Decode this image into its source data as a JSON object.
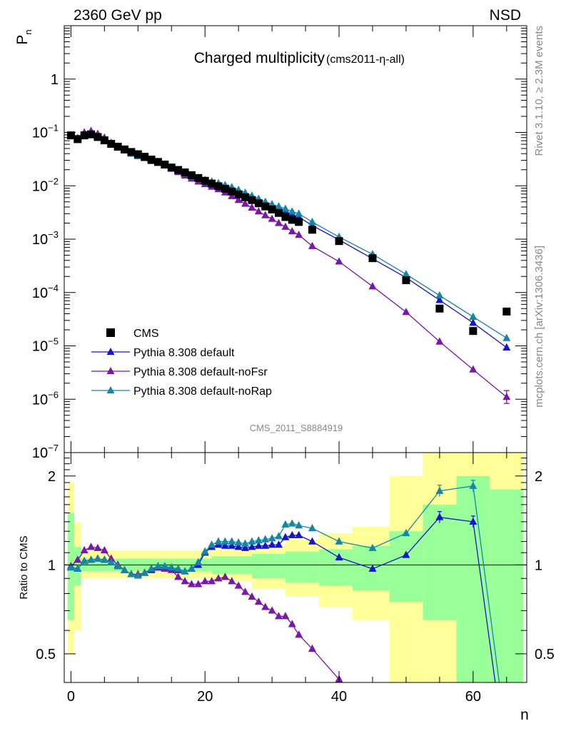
{
  "header": {
    "left": "2360 GeV pp",
    "right": "NSD"
  },
  "side_labels": {
    "rivet": "Rivet 3.1.10, ≥ 2.3M events",
    "mcplots": "mcplots.cern.ch [arXiv:1306.3436]"
  },
  "chart_data": [
    {
      "type": "scatter",
      "panel": "main",
      "title": "Charged multiplicity",
      "subtitle": "(cms2011-η-all)",
      "watermark": "CMS_2011_S8884919",
      "ylabel": "P",
      "ylabel_sub": "n",
      "xlabel": "n",
      "yscale": "log",
      "ylim": [
        1e-07,
        10
      ],
      "xlim": [
        -1,
        68
      ],
      "y_ticks": [
        {
          "value": 1e-07,
          "base": "10",
          "exp": "−7"
        },
        {
          "value": 1e-06,
          "base": "10",
          "exp": "−6"
        },
        {
          "value": 1e-05,
          "base": "10",
          "exp": "−5"
        },
        {
          "value": 0.0001,
          "base": "10",
          "exp": "−4"
        },
        {
          "value": 0.001,
          "base": "10",
          "exp": "−3"
        },
        {
          "value": 0.01,
          "base": "10",
          "exp": "−2"
        },
        {
          "value": 0.1,
          "base": "10",
          "exp": "−1"
        },
        {
          "value": 1,
          "base": "1",
          "exp": ""
        }
      ],
      "legend": {
        "placement": "bottom-left",
        "entries": [
          {
            "label": "CMS",
            "color": "#000000",
            "marker": "square"
          },
          {
            "label": "Pythia 8.308 default",
            "color": "#1515cc",
            "marker": "triangle"
          },
          {
            "label": "Pythia 8.308 default-noFsr",
            "color": "#7a16a8",
            "marker": "triangle"
          },
          {
            "label": "Pythia 8.308 default-noRap",
            "color": "#1486a6",
            "marker": "triangle"
          }
        ]
      },
      "series": [
        {
          "name": "CMS",
          "color": "#000000",
          "x": [
            0,
            1,
            2,
            3,
            4,
            5,
            6,
            7,
            8,
            9,
            10,
            11,
            12,
            13,
            14,
            15,
            16,
            17,
            18,
            19,
            20,
            21,
            22,
            23,
            24,
            25,
            26,
            27,
            28,
            29,
            30,
            31,
            32,
            33,
            34,
            36,
            40,
            45,
            50,
            55,
            60,
            65
          ],
          "y": [
            0.088,
            0.075,
            0.088,
            0.092,
            0.082,
            0.071,
            0.061,
            0.054,
            0.048,
            0.043,
            0.039,
            0.035,
            0.031,
            0.028,
            0.025,
            0.022,
            0.0198,
            0.0178,
            0.0158,
            0.014,
            0.0124,
            0.011,
            0.0098,
            0.0088,
            0.0078,
            0.0069,
            0.0061,
            0.0054,
            0.0047,
            0.0041,
            0.0036,
            0.0031,
            0.0026,
            0.0023,
            0.0021,
            0.0015,
            0.00092,
            0.00044,
            0.00017,
            5e-05,
            1.9e-05,
            4.4e-05
          ]
        },
        {
          "name": "Pythia 8.308 default",
          "color": "#1515cc",
          "x": [
            0,
            1,
            2,
            3,
            4,
            5,
            6,
            7,
            8,
            9,
            10,
            11,
            12,
            13,
            14,
            15,
            16,
            17,
            18,
            19,
            20,
            21,
            22,
            23,
            24,
            25,
            26,
            27,
            28,
            29,
            30,
            31,
            32,
            33,
            34,
            36,
            40,
            45,
            50,
            55,
            60,
            65
          ],
          "y": [
            0.086,
            0.072,
            0.09,
            0.095,
            0.085,
            0.073,
            0.062,
            0.054,
            0.046,
            0.04,
            0.036,
            0.033,
            0.029,
            0.027,
            0.024,
            0.021,
            0.0188,
            0.0167,
            0.015,
            0.0136,
            0.0124,
            0.0115,
            0.0107,
            0.0098,
            0.0089,
            0.0079,
            0.0069,
            0.0061,
            0.0053,
            0.0046,
            0.0041,
            0.0036,
            0.0033,
            0.0029,
            0.0026,
            0.0018,
            0.00097,
            0.00043,
            0.00019,
            7.2e-05,
            2.7e-05,
            9.3e-06
          ]
        },
        {
          "name": "Pythia 8.308 default-noFsr",
          "color": "#7a16a8",
          "x": [
            0,
            1,
            2,
            3,
            4,
            5,
            6,
            7,
            8,
            9,
            10,
            11,
            12,
            13,
            14,
            15,
            16,
            17,
            18,
            19,
            20,
            21,
            22,
            23,
            24,
            25,
            26,
            27,
            28,
            29,
            30,
            31,
            32,
            33,
            34,
            36,
            40,
            45,
            50,
            55,
            60,
            65
          ],
          "y": [
            0.087,
            0.078,
            0.1,
            0.106,
            0.094,
            0.08,
            0.064,
            0.054,
            0.046,
            0.04,
            0.036,
            0.033,
            0.03,
            0.027,
            0.024,
            0.0208,
            0.018,
            0.0155,
            0.0136,
            0.012,
            0.0107,
            0.0096,
            0.0086,
            0.0075,
            0.0064,
            0.0054,
            0.0046,
            0.0039,
            0.0033,
            0.0028,
            0.0024,
            0.002,
            0.0017,
            0.0014,
            0.0012,
            0.00074,
            0.00038,
            0.00013,
            4.3e-05,
            1.2e-05,
            3.6e-06,
            1.1e-06
          ]
        },
        {
          "name": "Pythia 8.308 default-noRap",
          "color": "#1486a6",
          "x": [
            0,
            1,
            2,
            3,
            4,
            5,
            6,
            7,
            8,
            9,
            10,
            11,
            12,
            13,
            14,
            15,
            16,
            17,
            18,
            19,
            20,
            21,
            22,
            23,
            24,
            25,
            26,
            27,
            28,
            29,
            30,
            31,
            32,
            33,
            34,
            36,
            40,
            45,
            50,
            55,
            60,
            65
          ],
          "y": [
            0.086,
            0.072,
            0.09,
            0.094,
            0.085,
            0.073,
            0.062,
            0.054,
            0.046,
            0.04,
            0.036,
            0.033,
            0.03,
            0.027,
            0.024,
            0.0215,
            0.019,
            0.0168,
            0.015,
            0.0138,
            0.0128,
            0.012,
            0.0112,
            0.0103,
            0.0094,
            0.0084,
            0.0074,
            0.0065,
            0.0057,
            0.005,
            0.0045,
            0.0041,
            0.0037,
            0.0033,
            0.003,
            0.0021,
            0.0011,
            0.00052,
            0.00022,
            8.8e-05,
            3.5e-05,
            1.4e-05
          ]
        }
      ]
    },
    {
      "type": "line",
      "panel": "ratio",
      "ylabel": "Ratio to CMS",
      "yscale": "log",
      "ylim": [
        0.4,
        2.4
      ],
      "xlim": [
        -1,
        68
      ],
      "x_tick_labels": [
        "0",
        "20",
        "40",
        "60"
      ],
      "y_tick_labels": [
        "0.5",
        "1",
        "2"
      ],
      "band_inner_color": "#99ff99",
      "band_outer_color": "#ffff99",
      "bands": [
        {
          "x0": -0.5,
          "x1": 0.5,
          "inner": [
            0.65,
            1.5
          ],
          "outer": [
            0.5,
            1.9
          ]
        },
        {
          "x0": 0.5,
          "x1": 1.5,
          "inner": [
            0.85,
            1.15
          ],
          "outer": [
            0.6,
            1.4
          ]
        },
        {
          "x0": 1.5,
          "x1": 21,
          "inner": [
            0.95,
            1.05
          ],
          "outer": [
            0.9,
            1.12
          ]
        },
        {
          "x0": 21,
          "x1": 27,
          "inner": [
            0.93,
            1.07
          ],
          "outer": [
            0.88,
            1.13
          ]
        },
        {
          "x0": 27,
          "x1": 32,
          "inner": [
            0.9,
            1.09
          ],
          "outer": [
            0.83,
            1.17
          ]
        },
        {
          "x0": 32,
          "x1": 37,
          "inner": [
            0.87,
            1.11
          ],
          "outer": [
            0.78,
            1.22
          ]
        },
        {
          "x0": 37,
          "x1": 42,
          "inner": [
            0.85,
            1.13
          ],
          "outer": [
            0.72,
            1.28
          ]
        },
        {
          "x0": 42,
          "x1": 47.5,
          "inner": [
            0.82,
            1.16
          ],
          "outer": [
            0.65,
            1.35
          ]
        },
        {
          "x0": 47.5,
          "x1": 52.5,
          "inner": [
            0.75,
            1.3
          ],
          "outer": [
            0.4,
            2.0
          ]
        },
        {
          "x0": 52.5,
          "x1": 57.5,
          "inner": [
            0.65,
            1.6
          ],
          "outer": [
            0.4,
            2.4
          ]
        },
        {
          "x0": 57.5,
          "x1": 62.5,
          "inner": [
            0.4,
            2.0
          ],
          "outer": [
            0.4,
            2.4
          ]
        },
        {
          "x0": 62.5,
          "x1": 67.5,
          "inner": [
            0.4,
            1.8
          ],
          "outer": [
            0.4,
            2.4
          ]
        }
      ],
      "series": [
        {
          "name": "Pythia 8.308 default",
          "color": "#1515cc",
          "x": [
            0,
            1,
            2,
            3,
            4,
            5,
            6,
            7,
            8,
            9,
            10,
            11,
            12,
            13,
            14,
            15,
            16,
            17,
            18,
            19,
            20,
            21,
            22,
            23,
            24,
            25,
            26,
            27,
            28,
            29,
            30,
            31,
            32,
            33,
            34,
            36,
            40,
            45,
            50,
            55,
            60,
            65
          ],
          "y": [
            0.98,
            0.97,
            1.03,
            1.04,
            1.05,
            1.04,
            1.02,
            0.99,
            0.96,
            0.93,
            0.92,
            0.94,
            0.96,
            0.98,
            0.98,
            0.97,
            0.96,
            0.95,
            0.97,
            1.0,
            1.1,
            1.15,
            1.17,
            1.16,
            1.16,
            1.15,
            1.14,
            1.15,
            1.16,
            1.16,
            1.17,
            1.17,
            1.24,
            1.26,
            1.26,
            1.2,
            1.06,
            0.97,
            1.08,
            1.45,
            1.4,
            0.21
          ]
        },
        {
          "name": "Pythia 8.308 default-noFsr",
          "color": "#7a16a8",
          "x": [
            0,
            1,
            2,
            3,
            4,
            5,
            6,
            7,
            8,
            9,
            10,
            11,
            12,
            13,
            14,
            15,
            16,
            17,
            18,
            19,
            20,
            21,
            22,
            23,
            24,
            25,
            26,
            27,
            28,
            29,
            30,
            31,
            32,
            33,
            34,
            36,
            40
          ],
          "y": [
            0.99,
            1.04,
            1.12,
            1.15,
            1.14,
            1.12,
            1.05,
            1.0,
            0.96,
            0.93,
            0.93,
            0.94,
            0.97,
            0.98,
            0.97,
            0.96,
            0.91,
            0.88,
            0.86,
            0.86,
            0.88,
            0.88,
            0.9,
            0.91,
            0.88,
            0.85,
            0.81,
            0.78,
            0.75,
            0.72,
            0.7,
            0.67,
            0.67,
            0.63,
            0.58,
            0.52,
            0.41
          ]
        },
        {
          "name": "Pythia 8.308 default-noRap",
          "color": "#1486a6",
          "x": [
            0,
            1,
            2,
            3,
            4,
            5,
            6,
            7,
            8,
            9,
            10,
            11,
            12,
            13,
            14,
            15,
            16,
            17,
            18,
            19,
            20,
            21,
            22,
            23,
            24,
            25,
            26,
            27,
            28,
            29,
            30,
            31,
            32,
            33,
            34,
            36,
            40,
            45,
            50,
            55,
            60,
            65
          ],
          "y": [
            0.98,
            0.97,
            1.03,
            1.04,
            1.05,
            1.04,
            1.02,
            0.99,
            0.96,
            0.93,
            0.92,
            0.94,
            0.97,
            0.99,
            0.99,
            0.98,
            0.97,
            0.95,
            0.97,
            1.02,
            1.11,
            1.17,
            1.2,
            1.2,
            1.2,
            1.19,
            1.18,
            1.2,
            1.21,
            1.22,
            1.23,
            1.25,
            1.37,
            1.38,
            1.36,
            1.33,
            1.2,
            1.14,
            1.28,
            1.78,
            1.85,
            0.26
          ]
        }
      ]
    }
  ]
}
